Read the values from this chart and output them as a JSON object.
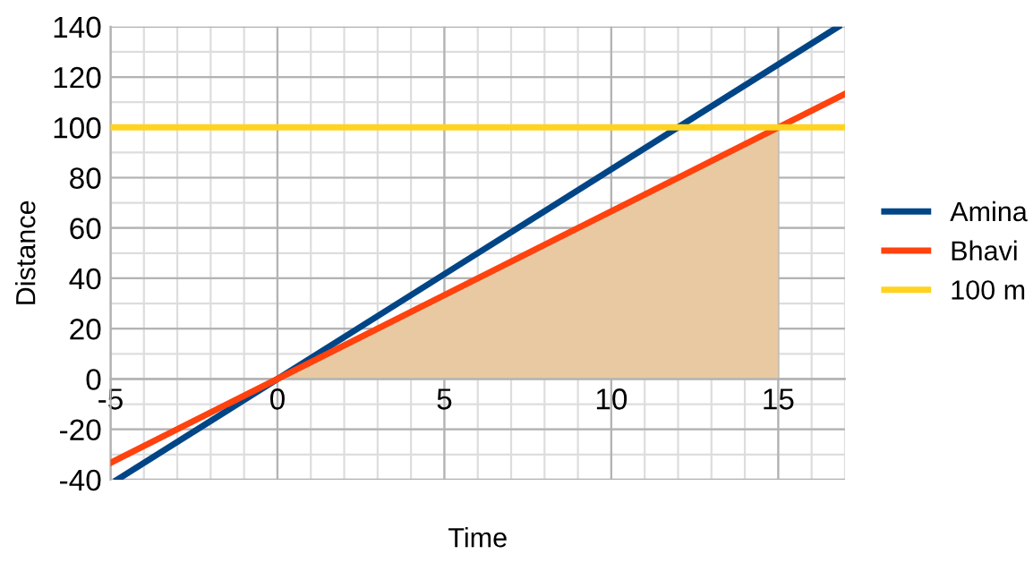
{
  "chart_data": {
    "type": "line",
    "xlabel": "Time",
    "ylabel": "Distance",
    "xlim": [
      -5,
      17
    ],
    "ylim": [
      -40,
      140
    ],
    "xticks": [
      -5,
      0,
      5,
      10,
      15
    ],
    "yticks": [
      -40,
      -20,
      0,
      20,
      40,
      60,
      80,
      100,
      120,
      140
    ],
    "grid": true,
    "legend": "right",
    "marker": "none",
    "line_style": "solid",
    "series": [
      {
        "type": "area",
        "color": "#e8c9a2",
        "x": [
          0,
          15
        ],
        "values": [
          0,
          100
        ]
      },
      {
        "name": "Amina",
        "color": "#004586",
        "x": [
          -4.8,
          16.8
        ],
        "values": [
          -40,
          140
        ]
      },
      {
        "name": "Bhavi",
        "color": "#ff420e",
        "x": [
          -5,
          17
        ],
        "values": [
          -33.3,
          113.3
        ]
      },
      {
        "name": "100 m",
        "color": "#ffd320",
        "x": [
          -5,
          17
        ],
        "values": [
          100,
          100
        ]
      }
    ]
  }
}
